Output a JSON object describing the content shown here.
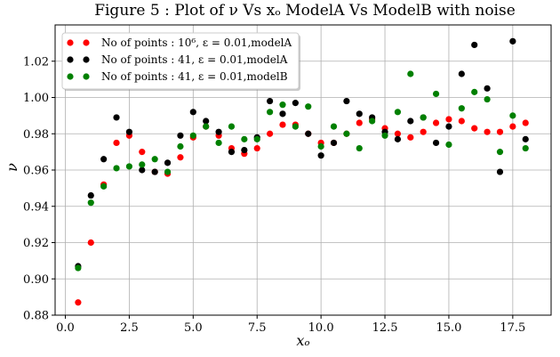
{
  "chart_data": {
    "type": "scatter",
    "title": "Figure 5 : Plot of ν Vs xₒ ModelA Vs ModelB with noise",
    "xlabel": "xₒ",
    "ylabel": "ν",
    "xlim": [
      -0.4,
      19.0
    ],
    "ylim": [
      0.88,
      1.04
    ],
    "xticks": [
      0.0,
      2.5,
      5.0,
      7.5,
      10.0,
      12.5,
      15.0,
      17.5
    ],
    "xtick_labels": [
      "0.0",
      "2.5",
      "5.0",
      "7.5",
      "10.0",
      "12.5",
      "15.0",
      "17.5"
    ],
    "yticks": [
      0.88,
      0.9,
      0.92,
      0.94,
      0.96,
      0.98,
      1.0,
      1.02
    ],
    "ytick_labels": [
      "0.88",
      "0.90",
      "0.92",
      "0.94",
      "0.96",
      "0.98",
      "1.00",
      "1.02"
    ],
    "grid": true,
    "legend_position": "top-left",
    "series": [
      {
        "name": "No of points : 10⁶, ε = 0.01,modelA",
        "color": "#ff0000",
        "x": [
          0.5,
          1.0,
          1.5,
          2.0,
          2.5,
          3.0,
          3.5,
          4.0,
          4.5,
          5.0,
          5.5,
          6.0,
          6.5,
          7.0,
          7.5,
          8.0,
          8.5,
          9.0,
          9.5,
          10.0,
          10.5,
          11.0,
          11.5,
          12.0,
          12.5,
          13.0,
          13.5,
          14.0,
          14.5,
          15.0,
          15.5,
          16.0,
          16.5,
          17.0,
          17.5,
          18.0
        ],
        "y": [
          0.887,
          0.92,
          0.952,
          0.975,
          0.979,
          0.97,
          0.959,
          0.958,
          0.967,
          0.978,
          0.984,
          0.979,
          0.972,
          0.969,
          0.972,
          0.98,
          0.985,
          0.985,
          0.98,
          0.975,
          0.975,
          0.98,
          0.986,
          0.988,
          0.983,
          0.98,
          0.978,
          0.981,
          0.986,
          0.988,
          0.987,
          0.983,
          0.981,
          0.981,
          0.984,
          0.986
        ]
      },
      {
        "name": "No of points : 41, ε = 0.01,modelA",
        "color": "#000000",
        "x": [
          0.5,
          1.0,
          1.5,
          2.0,
          2.5,
          3.0,
          3.5,
          4.0,
          4.5,
          5.0,
          5.5,
          6.0,
          6.5,
          7.0,
          7.5,
          8.0,
          8.5,
          9.0,
          9.5,
          10.0,
          10.5,
          11.0,
          11.5,
          12.0,
          12.5,
          13.0,
          13.5,
          14.0,
          14.5,
          15.0,
          15.5,
          16.0,
          16.5,
          17.0,
          17.5,
          18.0
        ],
        "y": [
          0.907,
          0.946,
          0.966,
          0.989,
          0.981,
          0.96,
          0.959,
          0.964,
          0.979,
          0.992,
          0.987,
          0.981,
          0.97,
          0.971,
          0.978,
          0.998,
          0.991,
          0.997,
          0.98,
          0.968,
          0.975,
          0.998,
          0.991,
          0.989,
          0.981,
          0.977,
          0.987,
          0.989,
          0.975,
          0.984,
          1.013,
          1.029,
          1.005,
          0.959,
          1.031,
          0.977
        ]
      },
      {
        "name": "No of points : 41, ε = 0.01,modelB",
        "color": "#008000",
        "x": [
          0.5,
          1.0,
          1.5,
          2.0,
          2.5,
          3.0,
          3.5,
          4.0,
          4.5,
          5.0,
          5.5,
          6.0,
          6.5,
          7.0,
          7.5,
          8.0,
          8.5,
          9.0,
          9.5,
          10.0,
          10.5,
          11.0,
          11.5,
          12.0,
          12.5,
          13.0,
          13.5,
          14.0,
          14.5,
          15.0,
          15.5,
          16.0,
          16.5,
          17.0,
          17.5,
          18.0
        ],
        "y": [
          0.906,
          0.942,
          0.951,
          0.961,
          0.962,
          0.963,
          0.966,
          0.959,
          0.973,
          0.979,
          0.984,
          0.975,
          0.984,
          0.977,
          0.977,
          0.992,
          0.996,
          0.984,
          0.995,
          0.973,
          0.984,
          0.98,
          0.972,
          0.987,
          0.979,
          0.992,
          1.013,
          0.989,
          1.002,
          0.974,
          0.994,
          1.003,
          0.999,
          0.97,
          0.99,
          0.972
        ]
      }
    ]
  }
}
